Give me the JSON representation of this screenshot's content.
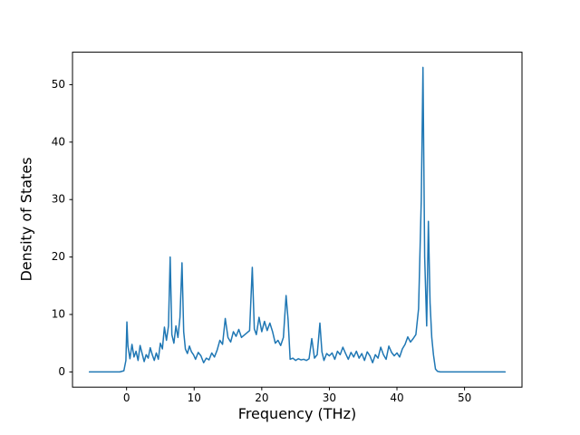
{
  "chart_data": {
    "type": "line",
    "title": "",
    "xlabel": "Frequency (THz)",
    "ylabel": "Density of States",
    "xlim": [
      -8,
      58.5
    ],
    "ylim": [
      -2.65,
      55.65
    ],
    "xticks": [
      0,
      10,
      20,
      30,
      40,
      50
    ],
    "yticks": [
      0,
      10,
      20,
      30,
      40,
      50
    ],
    "grid": false,
    "legend": "none",
    "line_color": "#1f77b4",
    "line_width": 1.5,
    "spine_color": "#000000",
    "series": [
      {
        "name": "Density of States",
        "x": [
          -5.5,
          -1.0,
          -0.4,
          -0.1,
          0.05,
          0.2,
          0.5,
          0.8,
          1.1,
          1.4,
          1.7,
          2.0,
          2.3,
          2.6,
          2.9,
          3.2,
          3.5,
          3.8,
          4.1,
          4.4,
          4.7,
          5.0,
          5.3,
          5.6,
          5.9,
          6.2,
          6.45,
          6.7,
          7.0,
          7.3,
          7.6,
          7.9,
          8.2,
          8.45,
          8.7,
          9.0,
          9.3,
          9.6,
          9.9,
          10.2,
          10.6,
          11.0,
          11.4,
          11.8,
          12.2,
          12.6,
          13.0,
          13.4,
          13.8,
          14.2,
          14.6,
          15.0,
          15.4,
          15.8,
          16.2,
          16.6,
          17.0,
          17.4,
          17.8,
          18.2,
          18.6,
          18.9,
          19.2,
          19.6,
          20.0,
          20.4,
          20.8,
          21.2,
          21.6,
          22.0,
          22.4,
          22.8,
          23.2,
          23.6,
          23.9,
          24.2,
          24.6,
          25.0,
          25.4,
          25.8,
          26.2,
          26.6,
          27.0,
          27.4,
          27.8,
          28.2,
          28.6,
          28.9,
          29.2,
          29.6,
          30.0,
          30.4,
          30.8,
          31.2,
          31.6,
          32.0,
          32.4,
          32.8,
          33.2,
          33.6,
          34.0,
          34.4,
          34.8,
          35.2,
          35.6,
          36.0,
          36.4,
          36.8,
          37.2,
          37.6,
          38.0,
          38.4,
          38.8,
          39.2,
          39.6,
          40.0,
          40.4,
          40.8,
          41.2,
          41.6,
          42.0,
          42.4,
          42.8,
          43.2,
          43.6,
          43.85,
          44.1,
          44.4,
          44.65,
          44.9,
          45.15,
          45.4,
          45.7,
          46.0,
          46.4,
          47.0,
          48.0,
          56.0
        ],
        "y": [
          0,
          0,
          0.2,
          2.0,
          8.7,
          4.5,
          2.3,
          4.8,
          2.6,
          3.6,
          2.0,
          4.6,
          3.2,
          1.8,
          3.0,
          2.4,
          4.2,
          3.0,
          2.0,
          3.3,
          2.2,
          5.0,
          4.0,
          7.8,
          5.5,
          8.0,
          20.0,
          6.5,
          5.0,
          8.0,
          6.0,
          9.5,
          19.0,
          7.0,
          4.0,
          3.2,
          4.5,
          3.5,
          3.0,
          2.2,
          3.4,
          2.8,
          1.6,
          2.4,
          2.1,
          3.3,
          2.6,
          3.8,
          5.5,
          4.8,
          9.3,
          6.0,
          5.2,
          7.0,
          6.2,
          7.4,
          6.0,
          6.4,
          6.8,
          7.2,
          18.2,
          7.5,
          6.5,
          9.5,
          7.0,
          8.8,
          7.2,
          8.5,
          7.0,
          5.0,
          5.5,
          4.6,
          6.0,
          13.3,
          9.0,
          2.2,
          2.4,
          2.0,
          2.3,
          2.1,
          2.2,
          2.0,
          2.3,
          5.8,
          2.4,
          3.0,
          8.5,
          3.5,
          2.0,
          3.2,
          2.8,
          3.3,
          2.2,
          3.6,
          3.0,
          4.3,
          3.2,
          2.2,
          3.4,
          2.6,
          3.6,
          2.4,
          3.2,
          2.0,
          3.5,
          2.8,
          1.6,
          3.0,
          2.4,
          4.3,
          3.0,
          2.2,
          4.5,
          3.4,
          2.8,
          3.3,
          2.6,
          4.0,
          4.8,
          6.1,
          5.2,
          5.8,
          6.5,
          11.0,
          30.0,
          53.0,
          20.0,
          8.0,
          26.2,
          12.0,
          6.0,
          3.0,
          0.5,
          0.1,
          0,
          0,
          0,
          0
        ]
      }
    ]
  }
}
